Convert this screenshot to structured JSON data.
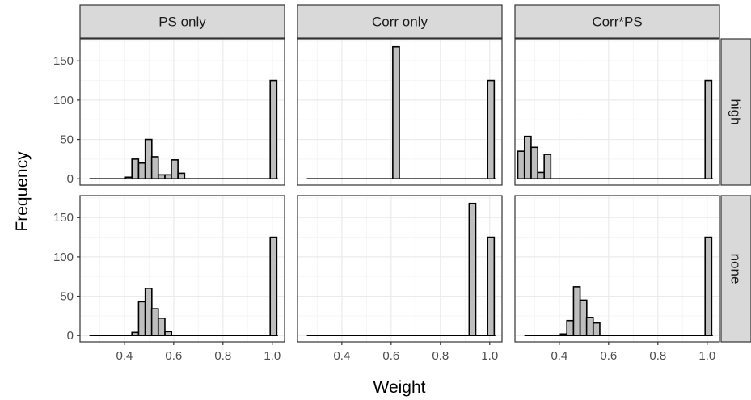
{
  "chart_data": {
    "type": "bar",
    "subtype": "faceted-histogram",
    "xlabel": "Weight",
    "ylabel": "Frequency",
    "col_facets": [
      "PS only",
      "Corr only",
      "Corr*PS"
    ],
    "row_facets": [
      "high",
      "none"
    ],
    "xlim": [
      0.22,
      1.05
    ],
    "ylim": [
      -8,
      178
    ],
    "x_ticks": [
      0.4,
      0.6,
      0.8,
      1.0
    ],
    "x_tick_labels": [
      "0.4",
      "0.6",
      "0.8",
      "1.0"
    ],
    "y_ticks": [
      0,
      50,
      100,
      150
    ],
    "y_tick_labels": [
      "0",
      "50",
      "100",
      "150"
    ],
    "bin_width": 0.0267,
    "baseline_x_range": [
      0.258,
      1.023
    ],
    "grid": true,
    "theme": "bw",
    "colors": {
      "bar_fill": "#bebebe",
      "bar_outline": "#000000",
      "strip_fill": "#d9d9d9",
      "strip_border": "#333333",
      "grid_major": "#ebebeb",
      "grid_minor": "#f5f5f5",
      "panel_border": "#333333"
    },
    "panels": [
      {
        "row": "high",
        "col": "PS only",
        "bins": [
          {
            "x": 0.418,
            "count": 2
          },
          {
            "x": 0.444,
            "count": 25
          },
          {
            "x": 0.471,
            "count": 20
          },
          {
            "x": 0.498,
            "count": 50
          },
          {
            "x": 0.524,
            "count": 28
          },
          {
            "x": 0.551,
            "count": 5
          },
          {
            "x": 0.578,
            "count": 5
          },
          {
            "x": 0.604,
            "count": 24
          },
          {
            "x": 0.631,
            "count": 7
          },
          {
            "x": 1.005,
            "count": 125
          }
        ]
      },
      {
        "row": "high",
        "col": "Corr only",
        "bins": [
          {
            "x": 0.62,
            "count": 168
          },
          {
            "x": 1.005,
            "count": 125
          }
        ]
      },
      {
        "row": "high",
        "col": "Corr*PS",
        "bins": [
          {
            "x": 0.245,
            "count": 35
          },
          {
            "x": 0.272,
            "count": 54
          },
          {
            "x": 0.299,
            "count": 40
          },
          {
            "x": 0.326,
            "count": 8
          },
          {
            "x": 0.352,
            "count": 31
          },
          {
            "x": 1.005,
            "count": 125
          }
        ]
      },
      {
        "row": "none",
        "col": "PS only",
        "bins": [
          {
            "x": 0.444,
            "count": 4
          },
          {
            "x": 0.471,
            "count": 43
          },
          {
            "x": 0.498,
            "count": 60
          },
          {
            "x": 0.524,
            "count": 34
          },
          {
            "x": 0.551,
            "count": 22
          },
          {
            "x": 0.578,
            "count": 5
          },
          {
            "x": 1.005,
            "count": 125
          }
        ]
      },
      {
        "row": "none",
        "col": "Corr only",
        "bins": [
          {
            "x": 0.93,
            "count": 168
          },
          {
            "x": 1.005,
            "count": 125
          }
        ]
      },
      {
        "row": "none",
        "col": "Corr*PS",
        "bins": [
          {
            "x": 0.418,
            "count": 2
          },
          {
            "x": 0.444,
            "count": 19
          },
          {
            "x": 0.471,
            "count": 62
          },
          {
            "x": 0.498,
            "count": 45
          },
          {
            "x": 0.524,
            "count": 23
          },
          {
            "x": 0.551,
            "count": 16
          },
          {
            "x": 1.005,
            "count": 125
          }
        ]
      }
    ]
  }
}
